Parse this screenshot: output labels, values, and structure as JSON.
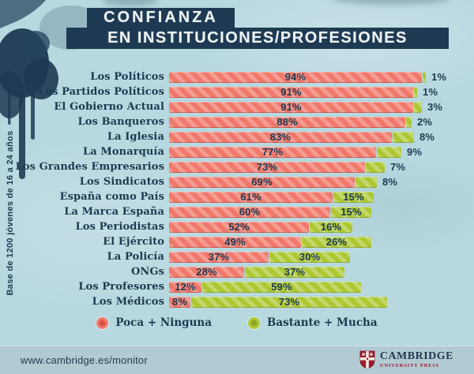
{
  "title": {
    "line1": "CONFIANZA",
    "line2": "EN INSTITUCIONES/PROFESIONES"
  },
  "side_note": "Base de 1200 jóvenes de 16 a 24 años",
  "chart_data": {
    "type": "bar",
    "orientation": "horizontal",
    "title": "Confianza en instituciones/profesiones",
    "categories": [
      "Los Políticos",
      "Los Partidos Políticos",
      "El Gobierno Actual",
      "Los Banqueros",
      "La Iglesia",
      "La Monarquía",
      "Los Grandes Empresarios",
      "Los Sindicatos",
      "España como País",
      "La Marca España",
      "Los Periodistas",
      "El Ejército",
      "La Policía",
      "ONGs",
      "Los Profesores",
      "Los Médicos"
    ],
    "series": [
      {
        "name": "Poca + Ninguna",
        "color": "#f0796c",
        "values": [
          94,
          91,
          91,
          88,
          83,
          77,
          73,
          69,
          61,
          60,
          52,
          49,
          37,
          28,
          12,
          8
        ]
      },
      {
        "name": "Bastante + Mucha",
        "color": "#adc832",
        "values": [
          1,
          1,
          3,
          2,
          8,
          9,
          7,
          8,
          15,
          15,
          16,
          26,
          30,
          37,
          59,
          73
        ]
      }
    ],
    "value_suffix": "%",
    "xlim": [
      0,
      100
    ],
    "grid": false,
    "legend_position": "bottom"
  },
  "legend": {
    "items": [
      {
        "label": "Poca + Ninguna",
        "color": "#f0796c"
      },
      {
        "label": "Bastante + Mucha",
        "color": "#adc832"
      }
    ]
  },
  "footer": {
    "url": "www.cambridge.es/monitor",
    "logo": {
      "line1": "CAMBRIDGE",
      "line2": "UNIVERSITY PRESS"
    }
  },
  "colors": {
    "background": "#b7d8df",
    "navy": "#1e3a52",
    "red_bar": "#f0796c",
    "green_bar": "#adc832",
    "footer_bg": "#b2cbd2",
    "logo_red": "#9e1b32",
    "title_text": "#eef3f4"
  }
}
